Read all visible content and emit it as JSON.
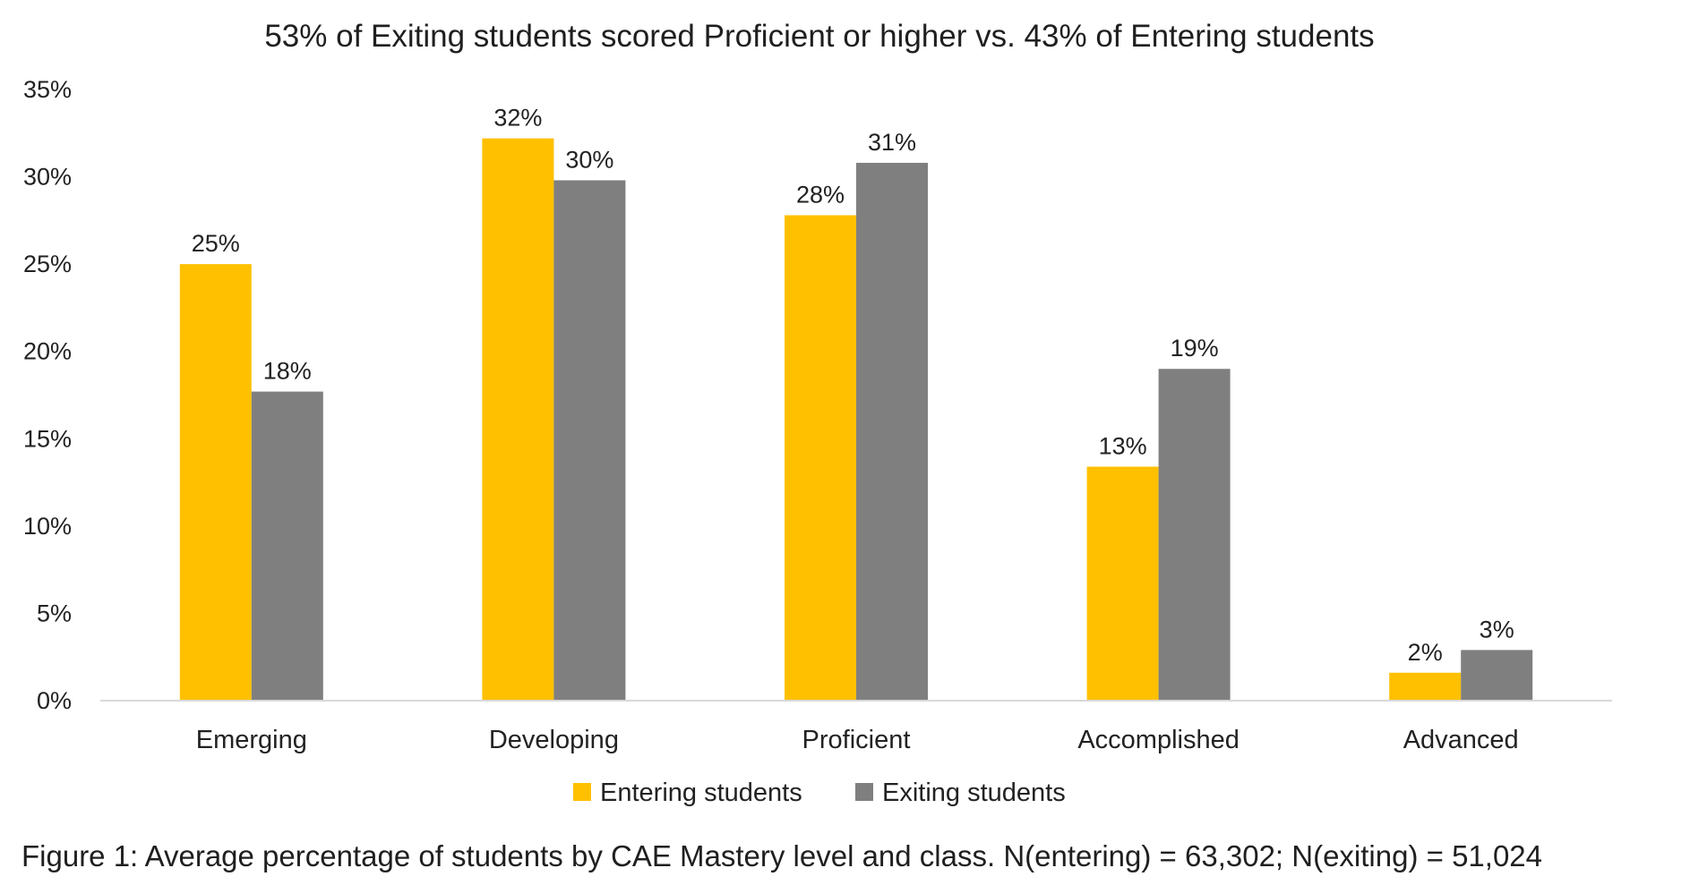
{
  "chart_data": {
    "type": "bar",
    "title": "53% of Exiting students scored Proficient or higher vs. 43% of Entering students",
    "categories": [
      "Emerging",
      "Developing",
      "Proficient",
      "Accomplished",
      "Advanced"
    ],
    "series": [
      {
        "name": "Entering students",
        "color": "#FFC000",
        "values": [
          25,
          32.2,
          27.8,
          13.4,
          1.6
        ],
        "labels": [
          "25%",
          "32%",
          "28%",
          "13%",
          "2%"
        ]
      },
      {
        "name": "Exiting students",
        "color": "#7F7F7F",
        "values": [
          17.7,
          29.8,
          30.8,
          19,
          2.9
        ],
        "labels": [
          "18%",
          "30%",
          "31%",
          "19%",
          "3%"
        ]
      }
    ],
    "ylim": [
      0,
      35
    ],
    "yticks": [
      0,
      5,
      10,
      15,
      20,
      25,
      30,
      35
    ],
    "ytick_labels": [
      "0%",
      "5%",
      "10%",
      "15%",
      "20%",
      "25%",
      "30%",
      "35%"
    ],
    "grid": false,
    "legend_position": "bottom",
    "caption": "Figure 1: Average percentage of students by CAE Mastery level and class. N(entering) = 63,302; N(exiting) = 51,024"
  }
}
